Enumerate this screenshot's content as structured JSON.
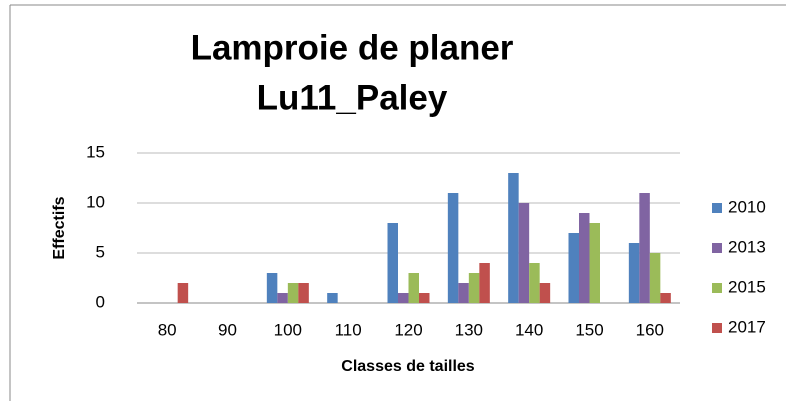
{
  "chart_data": {
    "type": "bar",
    "title": [
      "Lamproie de planer",
      "Lu11_Paley"
    ],
    "x_label": "Classes de tailles",
    "y_label": "Effectifs",
    "categories": [
      "80",
      "90",
      "100",
      "110",
      "120",
      "130",
      "140",
      "150",
      "160"
    ],
    "series": [
      {
        "name": "2010",
        "color": "#4f81bd",
        "values": [
          0,
          0,
          3,
          1,
          8,
          11,
          13,
          7,
          6
        ]
      },
      {
        "name": "2013",
        "color": "#8064a2",
        "values": [
          0,
          0,
          1,
          0,
          1,
          2,
          10,
          9,
          11
        ]
      },
      {
        "name": "2015",
        "color": "#9bbb59",
        "values": [
          0,
          0,
          2,
          0,
          3,
          3,
          4,
          8,
          5
        ]
      },
      {
        "name": "2017",
        "color": "#c0504d",
        "values": [
          2,
          0,
          2,
          0,
          1,
          4,
          2,
          0,
          1
        ]
      }
    ],
    "ylim": [
      0,
      15
    ],
    "yticks": [
      0,
      5,
      10,
      15
    ],
    "grid": true,
    "legend": "right"
  }
}
